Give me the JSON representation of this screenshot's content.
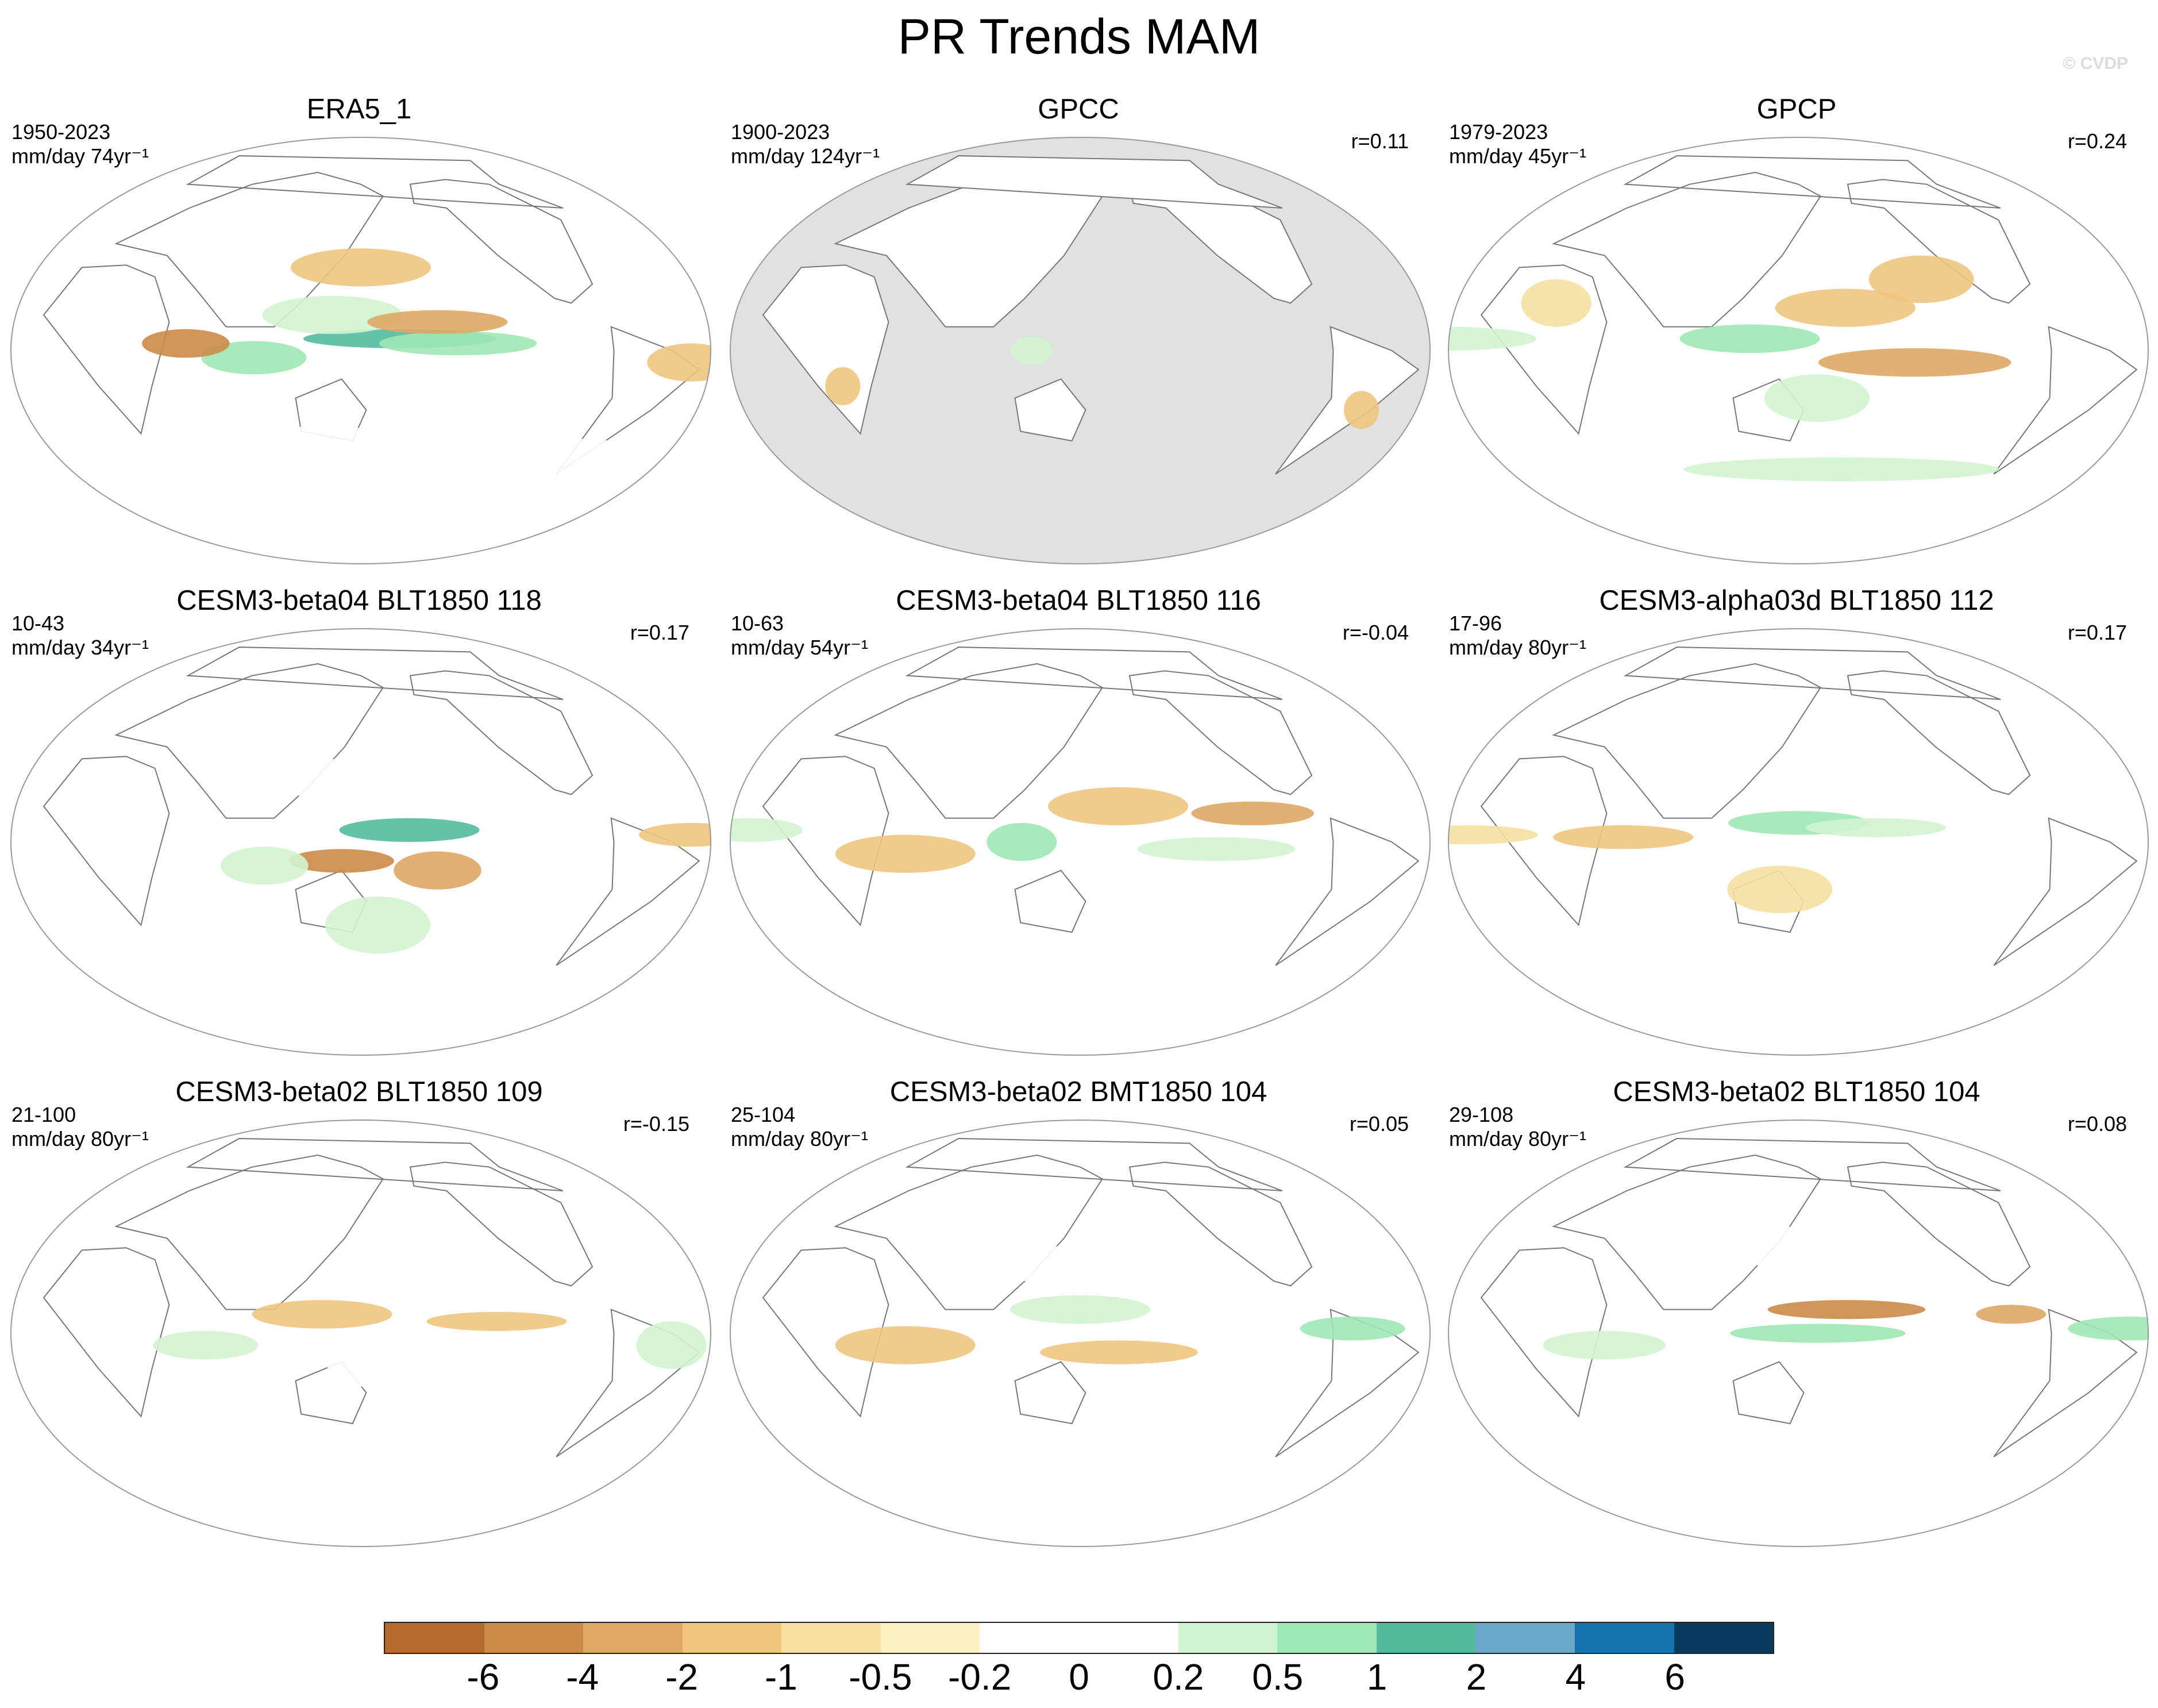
{
  "figure": {
    "title": "PR Trends MAM",
    "copyright": "© CVDP"
  },
  "panels": [
    {
      "title": "ERA5_1",
      "period": "1950-2023",
      "units": "mm/day 74yr⁻¹",
      "corr": "",
      "masked": false,
      "features": [
        {
          "lon": 170,
          "lat": 5,
          "w": 55,
          "h": 4,
          "c": 10
        },
        {
          "lon": -160,
          "lat": 3,
          "w": 45,
          "h": 5,
          "c": 9
        },
        {
          "lon": 95,
          "lat": -3,
          "w": 30,
          "h": 7,
          "c": 9
        },
        {
          "lon": 135,
          "lat": 15,
          "w": 40,
          "h": 8,
          "c": 8
        },
        {
          "lon": 60,
          "lat": 3,
          "w": 25,
          "h": 6,
          "c": 1
        },
        {
          "lon": -170,
          "lat": 12,
          "w": 40,
          "h": 5,
          "c": 2
        },
        {
          "lon": 120,
          "lat": -40,
          "w": 70,
          "h": 8,
          "c": 7
        },
        {
          "lon": -80,
          "lat": -45,
          "w": 60,
          "h": 8,
          "c": 7
        },
        {
          "lon": 20,
          "lat": -50,
          "w": 50,
          "h": 6,
          "c": 7
        },
        {
          "lon": -40,
          "lat": -5,
          "w": 25,
          "h": 8,
          "c": 3
        },
        {
          "lon": 150,
          "lat": 35,
          "w": 40,
          "h": 8,
          "c": 3
        }
      ]
    },
    {
      "title": "GPCC",
      "period": "1900-2023",
      "units": "mm/day 124yr⁻¹",
      "corr": "r=0.11",
      "masked": true,
      "features": [
        {
          "lon": -60,
          "lat": -10,
          "w": 15,
          "h": 10,
          "c": 7
        },
        {
          "lon": -55,
          "lat": -25,
          "w": 10,
          "h": 8,
          "c": 3
        },
        {
          "lon": 110,
          "lat": 30,
          "w": 15,
          "h": 8,
          "c": 7
        },
        {
          "lon": 75,
          "lat": 55,
          "w": 20,
          "h": 6,
          "c": 7
        },
        {
          "lon": -95,
          "lat": 40,
          "w": 15,
          "h": 6,
          "c": 7
        },
        {
          "lon": 25,
          "lat": -15,
          "w": 10,
          "h": 8,
          "c": 3
        },
        {
          "lon": 125,
          "lat": 0,
          "w": 12,
          "h": 6,
          "c": 8
        }
      ]
    },
    {
      "title": "GPCP",
      "period": "1979-2023",
      "units": "mm/day 45yr⁻¹",
      "corr": "r=0.24",
      "masked": false,
      "features": [
        {
          "lon": 125,
          "lat": 5,
          "w": 40,
          "h": 6,
          "c": 9
        },
        {
          "lon": -150,
          "lat": -5,
          "w": 55,
          "h": 6,
          "c": 2
        },
        {
          "lon": 175,
          "lat": 18,
          "w": 40,
          "h": 8,
          "c": 3
        },
        {
          "lon": -30,
          "lat": 5,
          "w": 50,
          "h": 5,
          "c": 8
        },
        {
          "lon": 180,
          "lat": -50,
          "w": 90,
          "h": 5,
          "c": 8
        },
        {
          "lon": 160,
          "lat": -20,
          "w": 30,
          "h": 10,
          "c": 8
        },
        {
          "lon": -140,
          "lat": 30,
          "w": 30,
          "h": 10,
          "c": 3
        },
        {
          "lon": 20,
          "lat": 20,
          "w": 20,
          "h": 10,
          "c": 4
        }
      ]
    },
    {
      "title": "CESM3-beta04 BLT1850 118",
      "period": "10-43",
      "units": "mm/day 34yr⁻¹",
      "corr": "r=0.17",
      "masked": false,
      "features": [
        {
          "lon": 175,
          "lat": 5,
          "w": 40,
          "h": 5,
          "c": 10
        },
        {
          "lon": 140,
          "lat": -8,
          "w": 30,
          "h": 5,
          "c": 1
        },
        {
          "lon": -170,
          "lat": -12,
          "w": 25,
          "h": 8,
          "c": 2
        },
        {
          "lon": 100,
          "lat": -10,
          "w": 25,
          "h": 8,
          "c": 8
        },
        {
          "lon": 140,
          "lat": 25,
          "w": 30,
          "h": 10,
          "c": 7
        },
        {
          "lon": -40,
          "lat": 3,
          "w": 30,
          "h": 5,
          "c": 3
        },
        {
          "lon": 160,
          "lat": -35,
          "w": 30,
          "h": 12,
          "c": 8
        }
      ]
    },
    {
      "title": "CESM3-beta04 BLT1850 116",
      "period": "10-63",
      "units": "mm/day 54yr⁻¹",
      "corr": "r=-0.04",
      "masked": false,
      "features": [
        {
          "lon": -140,
          "lat": -3,
          "w": 45,
          "h": 5,
          "c": 8
        },
        {
          "lon": 120,
          "lat": 0,
          "w": 20,
          "h": 8,
          "c": 9
        },
        {
          "lon": -120,
          "lat": 12,
          "w": 35,
          "h": 5,
          "c": 2
        },
        {
          "lon": 170,
          "lat": 15,
          "w": 40,
          "h": 8,
          "c": 3
        },
        {
          "lon": 60,
          "lat": -5,
          "w": 40,
          "h": 8,
          "c": 3
        },
        {
          "lon": -20,
          "lat": 5,
          "w": 30,
          "h": 5,
          "c": 8
        }
      ]
    },
    {
      "title": "CESM3-alpha03d BLT1850 112",
      "period": "17-96",
      "units": "mm/day 80yr⁻¹",
      "corr": "r=0.17",
      "masked": false,
      "features": [
        {
          "lon": 150,
          "lat": 8,
          "w": 40,
          "h": 5,
          "c": 9
        },
        {
          "lon": -170,
          "lat": 6,
          "w": 40,
          "h": 4,
          "c": 8
        },
        {
          "lon": 60,
          "lat": 2,
          "w": 40,
          "h": 5,
          "c": 3
        },
        {
          "lon": -20,
          "lat": 3,
          "w": 40,
          "h": 4,
          "c": 4
        },
        {
          "lon": 140,
          "lat": -20,
          "w": 30,
          "h": 10,
          "c": 4
        }
      ]
    },
    {
      "title": "CESM3-beta02 BLT1850 109",
      "period": "21-100",
      "units": "mm/day 80yr⁻¹",
      "corr": "r=-0.15",
      "masked": false,
      "features": [
        {
          "lon": 130,
          "lat": 8,
          "w": 40,
          "h": 6,
          "c": 3
        },
        {
          "lon": -140,
          "lat": 5,
          "w": 40,
          "h": 4,
          "c": 3
        },
        {
          "lon": 70,
          "lat": -5,
          "w": 30,
          "h": 6,
          "c": 8
        },
        {
          "lon": -50,
          "lat": -5,
          "w": 20,
          "h": 10,
          "c": 8
        },
        {
          "lon": 160,
          "lat": -15,
          "w": 30,
          "h": 8,
          "c": 7
        }
      ]
    },
    {
      "title": "CESM3-beta02 BMT1850 104",
      "period": "25-104",
      "units": "mm/day 80yr⁻¹",
      "corr": "r=0.05",
      "masked": false,
      "features": [
        {
          "lon": -70,
          "lat": 2,
          "w": 30,
          "h": 5,
          "c": 9
        },
        {
          "lon": 150,
          "lat": 10,
          "w": 40,
          "h": 6,
          "c": 8
        },
        {
          "lon": 60,
          "lat": -5,
          "w": 40,
          "h": 8,
          "c": 3
        },
        {
          "lon": 170,
          "lat": -8,
          "w": 45,
          "h": 5,
          "c": 3
        },
        {
          "lon": 120,
          "lat": 30,
          "w": 30,
          "h": 8,
          "c": 7
        }
      ]
    },
    {
      "title": "CESM3-beta02 BLT1850 104",
      "period": "29-108",
      "units": "mm/day 80yr⁻¹",
      "corr": "r=0.08",
      "masked": false,
      "features": [
        {
          "lon": 175,
          "lat": 10,
          "w": 45,
          "h": 4,
          "c": 1
        },
        {
          "lon": 160,
          "lat": 0,
          "w": 50,
          "h": 4,
          "c": 9
        },
        {
          "lon": -40,
          "lat": 2,
          "w": 35,
          "h": 5,
          "c": 9
        },
        {
          "lon": 50,
          "lat": -5,
          "w": 35,
          "h": 6,
          "c": 8
        },
        {
          "lon": -100,
          "lat": 8,
          "w": 20,
          "h": 4,
          "c": 2
        },
        {
          "lon": 150,
          "lat": 35,
          "w": 30,
          "h": 10,
          "c": 7
        }
      ]
    }
  ],
  "colorbar": {
    "colors": [
      "#b5692e",
      "#cc8a48",
      "#dfa764",
      "#f0c57f",
      "#f5e0a0",
      "#fbf1c2",
      "#ffffff",
      "#ffffff",
      "#d0f4d0",
      "#9ee8b3",
      "#52bb9e",
      "#6aa8c9",
      "#1672ac",
      "#073a5c"
    ],
    "labels": [
      "-6",
      "-4",
      "-2",
      "-1",
      "-0.5",
      "-0.2",
      "0",
      "0.2",
      "0.5",
      "1",
      "2",
      "4",
      "6"
    ]
  }
}
